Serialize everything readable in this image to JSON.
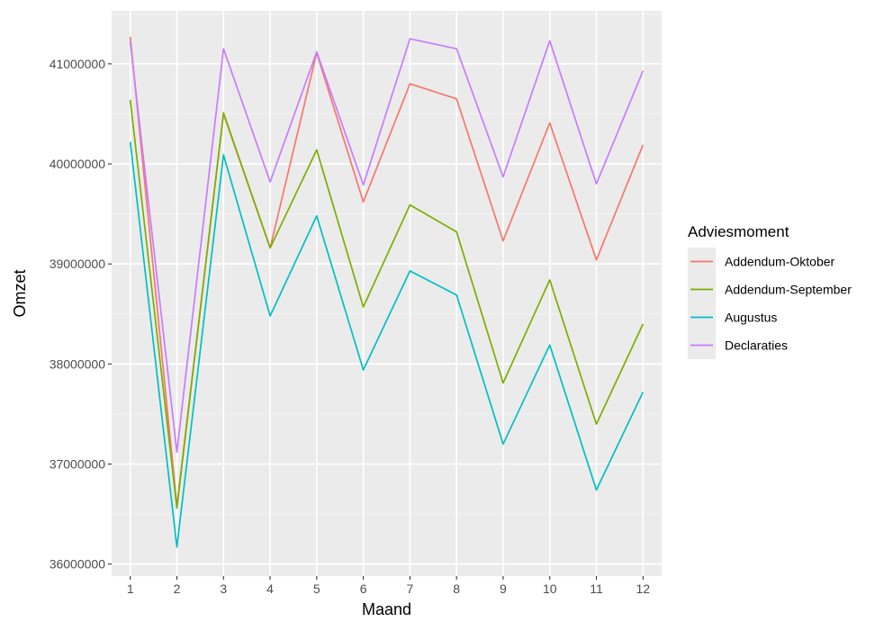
{
  "chart_data": {
    "type": "line",
    "xlabel": "Maand",
    "ylabel": "Omzet",
    "x": [
      1,
      2,
      3,
      4,
      5,
      6,
      7,
      8,
      9,
      10,
      11,
      12
    ],
    "x_ticks": [
      "1",
      "2",
      "3",
      "4",
      "5",
      "6",
      "7",
      "8",
      "9",
      "10",
      "11",
      "12"
    ],
    "xlim": [
      0.6,
      12.4
    ],
    "y_ticks": [
      {
        "value": 36000000,
        "label": "36000000"
      },
      {
        "value": 37000000,
        "label": "37000000"
      },
      {
        "value": 38000000,
        "label": "38000000"
      },
      {
        "value": 39000000,
        "label": "39000000"
      },
      {
        "value": 40000000,
        "label": "40000000"
      },
      {
        "value": 41000000,
        "label": "41000000"
      }
    ],
    "ylim": [
      35880000,
      41530000
    ],
    "grid": true,
    "background": "#ebebeb",
    "legend": {
      "title": "Adviesmoment",
      "placement": "right"
    },
    "series": [
      {
        "name": "Addendum-Oktober",
        "color": "#F8766D",
        "values": [
          41270000,
          36580000,
          40500000,
          39160000,
          41110000,
          39620000,
          40800000,
          40650000,
          39230000,
          40410000,
          39040000,
          40190000
        ]
      },
      {
        "name": "Addendum-September",
        "color": "#7CAE00",
        "values": [
          40640000,
          36560000,
          40510000,
          39160000,
          40140000,
          38570000,
          39590000,
          39320000,
          37810000,
          38840000,
          37400000,
          38400000
        ]
      },
      {
        "name": "Augustus",
        "color": "#00BFC4",
        "values": [
          40220000,
          36170000,
          40090000,
          38480000,
          39480000,
          37940000,
          38930000,
          38690000,
          37200000,
          38190000,
          36740000,
          37720000
        ]
      },
      {
        "name": "Declaraties",
        "color": "#C77CFF",
        "values": [
          41220000,
          37120000,
          41150000,
          39820000,
          41120000,
          39790000,
          41250000,
          41150000,
          39870000,
          41230000,
          39800000,
          40930000
        ]
      }
    ]
  }
}
